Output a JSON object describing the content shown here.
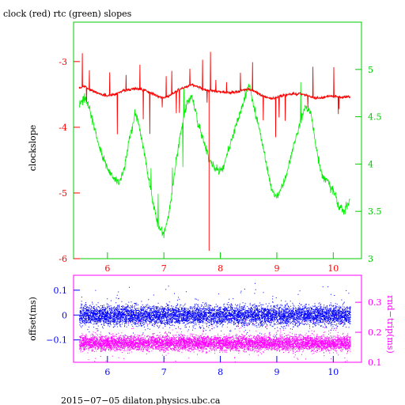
{
  "chart_data": [
    {
      "type": "line",
      "title": "clock (red) rtc (green) slopes",
      "xlabel": "",
      "ylabel": "clockslope",
      "xlim": [
        5.4,
        10.5
      ],
      "ylim": [
        -6,
        -2.4
      ],
      "y2lim": [
        3,
        5.5
      ],
      "x_ticks": [
        6,
        7,
        8,
        9,
        10
      ],
      "y_ticks": [
        -6,
        -5,
        -4,
        -3
      ],
      "y2_ticks": [
        3,
        3.5,
        4,
        4.5,
        5
      ],
      "axis_color": "#00cc00",
      "series": [
        {
          "axis": "left",
          "color": "#ff0000",
          "x": [
            5.5,
            5.6,
            5.7,
            5.8,
            5.9,
            6.0,
            6.1,
            6.2,
            6.3,
            6.4,
            6.5,
            6.6,
            6.7,
            6.8,
            6.9,
            7.0,
            7.1,
            7.2,
            7.3,
            7.4,
            7.5,
            7.6,
            7.7,
            7.8,
            7.9,
            8.0,
            8.1,
            8.2,
            8.3,
            8.4,
            8.5,
            8.6,
            8.7,
            8.8,
            8.9,
            9.0,
            9.1,
            9.2,
            9.3,
            9.4,
            9.5,
            9.6,
            9.7,
            9.8,
            9.9,
            10.0,
            10.1,
            10.2,
            10.3
          ],
          "y": [
            -3.4,
            -3.38,
            -3.43,
            -3.47,
            -3.5,
            -3.52,
            -3.5,
            -3.47,
            -3.44,
            -3.42,
            -3.41,
            -3.42,
            -3.45,
            -3.49,
            -3.53,
            -3.55,
            -3.52,
            -3.46,
            -3.42,
            -3.38,
            -3.35,
            -3.38,
            -3.42,
            -3.44,
            -3.45,
            -3.46,
            -3.47,
            -3.47,
            -3.46,
            -3.44,
            -3.42,
            -3.45,
            -3.5,
            -3.54,
            -3.56,
            -3.55,
            -3.52,
            -3.5,
            -3.49,
            -3.49,
            -3.51,
            -3.54,
            -3.56,
            -3.55,
            -3.53,
            -3.53,
            -3.54,
            -3.54,
            -3.54
          ]
        },
        {
          "axis": "right",
          "color": "#00ee00",
          "x": [
            5.5,
            5.6,
            5.7,
            5.8,
            5.9,
            6.0,
            6.1,
            6.2,
            6.3,
            6.4,
            6.5,
            6.6,
            6.7,
            6.8,
            6.9,
            7.0,
            7.1,
            7.2,
            7.3,
            7.4,
            7.5,
            7.6,
            7.7,
            7.8,
            7.9,
            8.0,
            8.1,
            8.2,
            8.3,
            8.4,
            8.5,
            8.6,
            8.7,
            8.8,
            8.9,
            9.0,
            9.1,
            9.2,
            9.3,
            9.4,
            9.5,
            9.6,
            9.7,
            9.8,
            9.9,
            10.0,
            10.1,
            10.2,
            10.3
          ],
          "y": [
            4.63,
            4.7,
            4.55,
            4.3,
            4.1,
            3.95,
            3.85,
            3.8,
            3.95,
            4.3,
            4.55,
            4.3,
            3.95,
            3.6,
            3.35,
            3.25,
            3.5,
            3.95,
            4.35,
            4.62,
            4.72,
            4.45,
            4.25,
            4.05,
            3.95,
            3.92,
            4.05,
            4.25,
            4.45,
            4.62,
            4.85,
            4.6,
            4.35,
            4.05,
            3.75,
            3.65,
            3.78,
            3.95,
            4.2,
            4.4,
            4.6,
            4.55,
            4.15,
            3.88,
            3.82,
            3.72,
            3.55,
            3.5,
            3.65
          ]
        }
      ]
    },
    {
      "type": "scatter",
      "xlabel": "",
      "ylabel": "offset(ms)",
      "y2label": "rnd−trip(ms)",
      "xlim": [
        5.4,
        10.5
      ],
      "ylim": [
        -0.19,
        0.16
      ],
      "y2lim": [
        0.1,
        0.39
      ],
      "x_ticks": [
        6,
        7,
        8,
        9,
        10
      ],
      "y_ticks": [
        -0.1,
        0,
        0.1
      ],
      "y_tick_labels": [
        "−0.1",
        "0",
        "0.1"
      ],
      "y2_ticks": [
        0.1,
        0.2,
        0.3
      ],
      "axis_color": "#ff00ff",
      "series": [
        {
          "axis": "left",
          "color": "#0000ff",
          "x_range": [
            5.5,
            10.3
          ],
          "center": 0.0,
          "spread": 0.04
        },
        {
          "axis": "right",
          "color": "#ff00ff",
          "x_range": [
            5.5,
            10.3
          ],
          "center": 0.165,
          "spread": 0.025
        }
      ]
    }
  ],
  "footer": "2015−07−05  dilaton.physics.ubc.ca"
}
